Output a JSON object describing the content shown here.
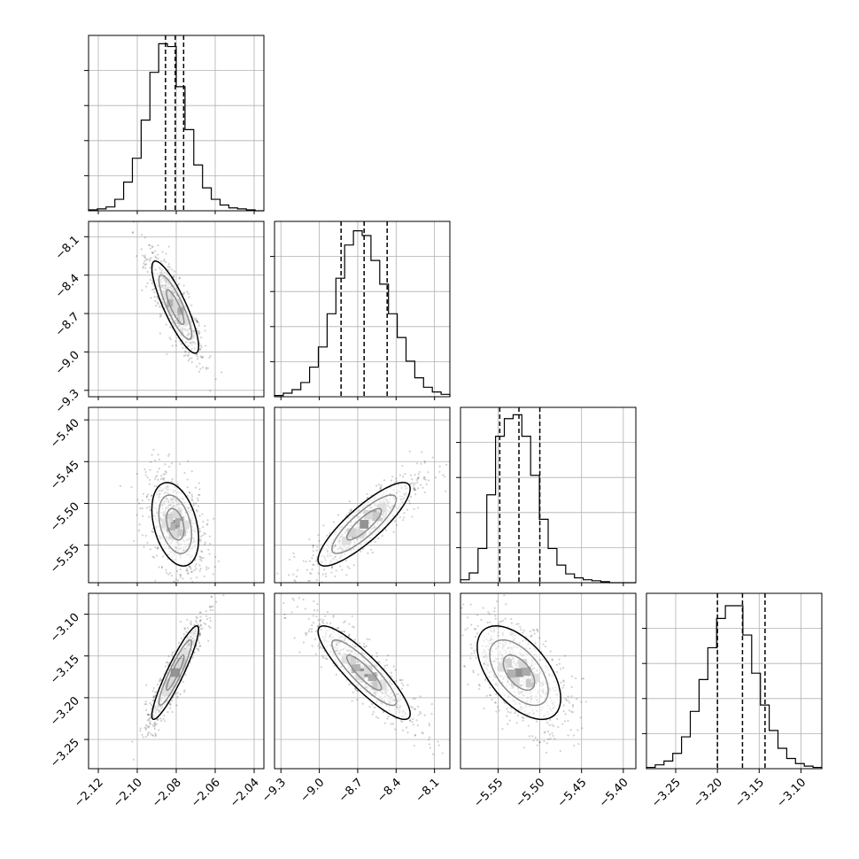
{
  "chart_data": {
    "type": "corner",
    "title": "",
    "grid": true,
    "parameters": [
      {
        "label": "",
        "range": [
          -2.125,
          -2.035
        ],
        "ticks": [
          -2.12,
          -2.1,
          -2.08,
          -2.06,
          -2.04
        ],
        "tick_labels": [
          "−2.12",
          "−2.10",
          "−2.08",
          "−2.06",
          "−2.04"
        ],
        "quantiles": [
          -2.0855,
          -2.0805,
          -2.0762
        ],
        "mean": -2.0805,
        "sd": 0.006,
        "hist_counts": [
          1,
          2,
          4,
          12,
          30,
          55,
          95,
          145,
          175,
          172,
          130,
          85,
          48,
          24,
          12,
          6,
          3,
          2,
          1,
          0
        ],
        "hist_ymax": 180
      },
      {
        "label": "",
        "range": [
          -9.35,
          -7.98
        ],
        "ticks": [
          -9.3,
          -9.0,
          -8.7,
          -8.4,
          -8.1
        ],
        "tick_labels": [
          "−9.3",
          "−9.0",
          "−8.7",
          "−8.4",
          "−8.1"
        ],
        "quantiles": [
          -8.83,
          -8.65,
          -8.47
        ],
        "mean": -8.65,
        "sd": 0.18,
        "hist_counts": [
          1,
          3,
          6,
          12,
          25,
          42,
          70,
          100,
          128,
          140,
          136,
          115,
          95,
          70,
          50,
          30,
          16,
          8,
          4,
          2
        ],
        "hist_ymax": 145
      },
      {
        "label": "",
        "range": [
          -5.595,
          -5.385
        ],
        "ticks": [
          -5.55,
          -5.5,
          -5.45,
          -5.4
        ],
        "tick_labels": [
          "−5.55",
          "−5.50",
          "−5.45",
          "−5.40"
        ],
        "quantiles": [
          -5.548,
          -5.525,
          -5.5
        ],
        "mean": -5.525,
        "sd": 0.025,
        "hist_counts": [
          3,
          10,
          35,
          90,
          150,
          168,
          172,
          150,
          110,
          65,
          35,
          18,
          9,
          5,
          3,
          2,
          1,
          0,
          0,
          0
        ],
        "hist_ymax": 176
      },
      {
        "label": "",
        "range": [
          -3.285,
          -3.075
        ],
        "ticks": [
          -3.25,
          -3.2,
          -3.15,
          -3.1
        ],
        "tick_labels": [
          "−3.25",
          "−3.20",
          "−3.15",
          "−3.10"
        ],
        "quantiles": [
          -3.2,
          -3.17,
          -3.143
        ],
        "mean": -3.17,
        "sd": 0.028,
        "hist_counts": [
          1,
          3,
          6,
          12,
          25,
          45,
          70,
          95,
          118,
          128,
          128,
          105,
          75,
          50,
          30,
          16,
          8,
          4,
          2,
          1
        ],
        "hist_ymax": 135
      }
    ],
    "correlations": [
      {
        "row": 1,
        "col": 0,
        "r": -0.85
      },
      {
        "row": 2,
        "col": 0,
        "r": -0.35
      },
      {
        "row": 2,
        "col": 1,
        "r": 0.85
      },
      {
        "row": 3,
        "col": 0,
        "r": 0.92
      },
      {
        "row": 3,
        "col": 1,
        "r": -0.88
      },
      {
        "row": 3,
        "col": 2,
        "r": -0.55
      }
    ],
    "colors": {
      "hist": "#000000",
      "contour": "#000000",
      "scatter": "#000000",
      "grid": "#b0b0b0"
    }
  }
}
